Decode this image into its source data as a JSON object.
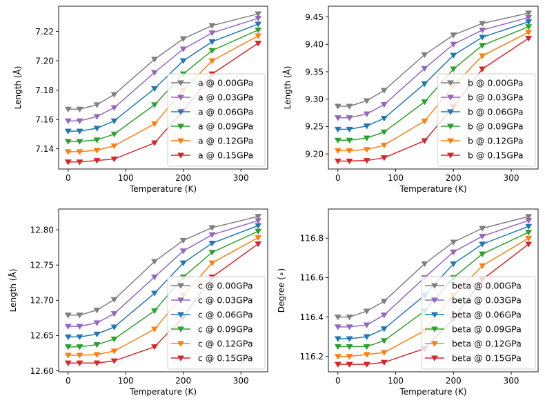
{
  "chart_data": [
    {
      "type": "line",
      "title": "",
      "xlabel": "Temperature (K)",
      "ylabel": "Length (Å)",
      "xlim": [
        -16.5,
        346.5
      ],
      "ylim": [
        7.1262,
        7.2372
      ],
      "xticks": [
        0,
        100,
        200,
        300
      ],
      "xtick_labels": [
        "0",
        "100",
        "200",
        "300"
      ],
      "yticks": [
        7.14,
        7.16,
        7.18,
        7.2,
        7.22
      ],
      "ytick_labels": [
        "7.14",
        "7.16",
        "7.18",
        "7.20",
        "7.22"
      ],
      "grid": false,
      "legend_position": "lower-right",
      "marker": "triangle-down",
      "x": [
        0,
        20,
        50,
        80,
        150,
        200,
        250,
        330
      ],
      "series": [
        {
          "name": "a @ 0.00GPa",
          "color": "#7f7f7f",
          "values": [
            7.167,
            7.167,
            7.17,
            7.177,
            7.201,
            7.215,
            7.224,
            7.232
          ]
        },
        {
          "name": "a @ 0.03GPa",
          "color": "#9467bd",
          "values": [
            7.159,
            7.159,
            7.162,
            7.168,
            7.192,
            7.208,
            7.219,
            7.229
          ]
        },
        {
          "name": "a @ 0.06GPa",
          "color": "#1f77b4",
          "values": [
            7.152,
            7.152,
            7.154,
            7.159,
            7.181,
            7.2,
            7.213,
            7.225
          ]
        },
        {
          "name": "a @ 0.09GPa",
          "color": "#2ca02c",
          "values": [
            7.145,
            7.145,
            7.146,
            7.15,
            7.17,
            7.191,
            7.207,
            7.221
          ]
        },
        {
          "name": "a @ 0.12GPa",
          "color": "#ff7f0e",
          "values": [
            7.138,
            7.138,
            7.139,
            7.142,
            7.157,
            7.18,
            7.2,
            7.217
          ]
        },
        {
          "name": "a @ 0.15GPa",
          "color": "#d62728",
          "values": [
            7.131,
            7.131,
            7.132,
            7.133,
            7.144,
            7.166,
            7.191,
            7.212
          ]
        }
      ]
    },
    {
      "type": "line",
      "title": "",
      "xlabel": "Temperature (K)",
      "ylabel": "Length (Å)",
      "xlim": [
        -16.5,
        346.5
      ],
      "ylim": [
        9.1725,
        9.4695
      ],
      "xticks": [
        0,
        100,
        200,
        300
      ],
      "xtick_labels": [
        "0",
        "100",
        "200",
        "300"
      ],
      "yticks": [
        9.2,
        9.25,
        9.3,
        9.35,
        9.4,
        9.45
      ],
      "ytick_labels": [
        "9.20",
        "9.25",
        "9.30",
        "9.35",
        "9.40",
        "9.45"
      ],
      "grid": false,
      "legend_position": "lower-right",
      "marker": "triangle-down",
      "x": [
        0,
        20,
        50,
        80,
        150,
        200,
        250,
        330
      ],
      "series": [
        {
          "name": "b @ 0.00GPa",
          "color": "#7f7f7f",
          "values": [
            9.287,
            9.287,
            9.297,
            9.316,
            9.381,
            9.417,
            9.438,
            9.457
          ]
        },
        {
          "name": "b @ 0.03GPa",
          "color": "#9467bd",
          "values": [
            9.266,
            9.266,
            9.273,
            9.29,
            9.356,
            9.4,
            9.426,
            9.449
          ]
        },
        {
          "name": "b @ 0.06GPa",
          "color": "#1f77b4",
          "values": [
            9.245,
            9.245,
            9.251,
            9.265,
            9.328,
            9.38,
            9.413,
            9.441
          ]
        },
        {
          "name": "b @ 0.09GPa",
          "color": "#2ca02c",
          "values": [
            9.225,
            9.225,
            9.229,
            9.24,
            9.295,
            9.355,
            9.398,
            9.432
          ]
        },
        {
          "name": "b @ 0.12GPa",
          "color": "#ff7f0e",
          "values": [
            9.206,
            9.206,
            9.208,
            9.216,
            9.26,
            9.324,
            9.379,
            9.422
          ]
        },
        {
          "name": "b @ 0.15GPa",
          "color": "#d62728",
          "values": [
            9.187,
            9.187,
            9.188,
            9.193,
            9.224,
            9.286,
            9.355,
            9.411
          ]
        }
      ]
    },
    {
      "type": "line",
      "title": "",
      "xlabel": "Temperature (K)",
      "ylabel": "Length (Å)",
      "xlim": [
        -16.5,
        346.5
      ],
      "ylim": [
        12.5985,
        12.8295
      ],
      "xticks": [
        0,
        100,
        200,
        300
      ],
      "xtick_labels": [
        "0",
        "100",
        "200",
        "300"
      ],
      "yticks": [
        12.6,
        12.65,
        12.7,
        12.75,
        12.8
      ],
      "ytick_labels": [
        "12.60",
        "12.65",
        "12.70",
        "12.75",
        "12.80"
      ],
      "grid": false,
      "legend_position": "lower-right",
      "marker": "triangle-down",
      "x": [
        0,
        20,
        50,
        80,
        150,
        200,
        250,
        330
      ],
      "series": [
        {
          "name": "c @ 0.00GPa",
          "color": "#7f7f7f",
          "values": [
            12.679,
            12.679,
            12.686,
            12.701,
            12.755,
            12.785,
            12.803,
            12.819
          ]
        },
        {
          "name": "c @ 0.03GPa",
          "color": "#9467bd",
          "values": [
            12.663,
            12.663,
            12.668,
            12.681,
            12.733,
            12.77,
            12.793,
            12.813
          ]
        },
        {
          "name": "c @ 0.06GPa",
          "color": "#1f77b4",
          "values": [
            12.648,
            12.648,
            12.652,
            12.662,
            12.71,
            12.753,
            12.781,
            12.806
          ]
        },
        {
          "name": "c @ 0.09GPa",
          "color": "#2ca02c",
          "values": [
            12.634,
            12.634,
            12.637,
            12.645,
            12.685,
            12.733,
            12.768,
            12.798
          ]
        },
        {
          "name": "c @ 0.12GPa",
          "color": "#ff7f0e",
          "values": [
            12.622,
            12.622,
            12.623,
            12.628,
            12.659,
            12.707,
            12.753,
            12.789
          ]
        },
        {
          "name": "c @ 0.15GPa",
          "color": "#d62728",
          "values": [
            12.611,
            12.611,
            12.611,
            12.614,
            12.634,
            12.676,
            12.733,
            12.78
          ]
        }
      ]
    },
    {
      "type": "line",
      "title": "",
      "xlabel": "Temperature (K)",
      "ylabel": "Degree (∘)",
      "xlim": [
        -16.5,
        346.5
      ],
      "ylim": [
        116.122,
        116.948
      ],
      "xticks": [
        0,
        100,
        200,
        300
      ],
      "xtick_labels": [
        "0",
        "100",
        "200",
        "300"
      ],
      "yticks": [
        116.2,
        116.4,
        116.6,
        116.8
      ],
      "ytick_labels": [
        "116.2",
        "116.4",
        "116.6",
        "116.8"
      ],
      "grid": false,
      "legend_position": "lower-right",
      "marker": "triangle-down",
      "x": [
        0,
        20,
        50,
        80,
        150,
        200,
        250,
        330
      ],
      "series": [
        {
          "name": "beta @ 0.00GPa",
          "color": "#7f7f7f",
          "values": [
            116.4,
            116.4,
            116.43,
            116.48,
            116.67,
            116.78,
            116.85,
            116.91
          ]
        },
        {
          "name": "beta @ 0.03GPa",
          "color": "#9467bd",
          "values": [
            116.35,
            116.35,
            116.36,
            116.41,
            116.6,
            116.73,
            116.81,
            116.89
          ]
        },
        {
          "name": "beta @ 0.06GPa",
          "color": "#1f77b4",
          "values": [
            116.29,
            116.29,
            116.3,
            116.34,
            116.51,
            116.67,
            116.77,
            116.86
          ]
        },
        {
          "name": "beta @ 0.09GPa",
          "color": "#2ca02c",
          "values": [
            116.25,
            116.25,
            116.25,
            116.28,
            116.43,
            116.6,
            116.72,
            116.83
          ]
        },
        {
          "name": "beta @ 0.12GPa",
          "color": "#ff7f0e",
          "values": [
            116.2,
            116.2,
            116.21,
            116.22,
            116.33,
            116.51,
            116.66,
            116.8
          ]
        },
        {
          "name": "beta @ 0.15GPa",
          "color": "#d62728",
          "values": [
            116.16,
            116.16,
            116.16,
            116.17,
            116.24,
            116.39,
            116.59,
            116.77
          ]
        }
      ]
    }
  ]
}
